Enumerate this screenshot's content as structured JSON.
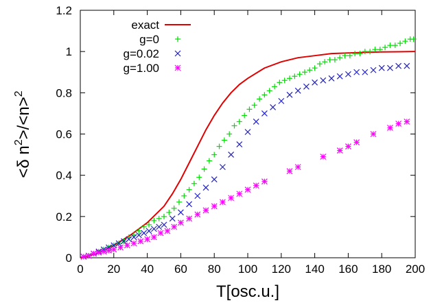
{
  "chart_data": {
    "type": "line",
    "xlabel": "T[osc.u.]",
    "ylabel_parts": [
      "<δ n",
      "2",
      ">/<n>",
      "2"
    ],
    "xlim": [
      0,
      200
    ],
    "ylim": [
      0,
      1.2
    ],
    "x_ticks": [
      0,
      20,
      40,
      60,
      80,
      100,
      120,
      140,
      160,
      180,
      200
    ],
    "y_ticks": [
      0,
      0.2,
      0.4,
      0.6,
      0.8,
      1,
      1.2
    ],
    "x_tick_labels": [
      "0",
      "20",
      "40",
      "60",
      "80",
      "100",
      "120",
      "140",
      "160",
      "180",
      "200"
    ],
    "y_tick_labels": [
      "0",
      "0.2",
      "0.4",
      "0.6",
      "0.8",
      "1",
      "1.2"
    ],
    "grid": false,
    "legend_position": "top-left",
    "series": [
      {
        "name": "exact",
        "style": "line",
        "color": "#e00000",
        "x": [
          0,
          10,
          20,
          30,
          40,
          50,
          55,
          60,
          65,
          70,
          75,
          80,
          85,
          90,
          95,
          100,
          110,
          120,
          130,
          140,
          150,
          160,
          170,
          180,
          190,
          200
        ],
        "y": [
          0,
          0.02,
          0.06,
          0.11,
          0.17,
          0.25,
          0.31,
          0.38,
          0.46,
          0.54,
          0.62,
          0.69,
          0.75,
          0.8,
          0.84,
          0.87,
          0.92,
          0.95,
          0.97,
          0.98,
          0.99,
          0.993,
          0.996,
          0.998,
          0.999,
          1.0
        ]
      },
      {
        "name": "g=0",
        "style": "plus",
        "color": "#00dd00",
        "x": [
          2,
          5,
          8,
          11,
          14,
          17,
          20,
          23,
          26,
          29,
          32,
          35,
          38,
          41,
          44,
          47,
          50,
          53,
          56,
          59,
          62,
          65,
          68,
          71,
          74,
          77,
          80,
          83,
          86,
          89,
          92,
          95,
          98,
          101,
          104,
          107,
          110,
          113,
          116,
          119,
          122,
          125,
          128,
          131,
          134,
          137,
          140,
          143,
          146,
          149,
          152,
          155,
          158,
          161,
          164,
          167,
          170,
          173,
          176,
          179,
          182,
          185,
          188,
          191,
          194,
          197,
          199
        ],
        "y": [
          0.005,
          0.01,
          0.02,
          0.03,
          0.04,
          0.05,
          0.06,
          0.07,
          0.08,
          0.1,
          0.11,
          0.13,
          0.15,
          0.16,
          0.18,
          0.19,
          0.2,
          0.22,
          0.24,
          0.27,
          0.3,
          0.33,
          0.36,
          0.39,
          0.43,
          0.47,
          0.5,
          0.54,
          0.57,
          0.6,
          0.64,
          0.66,
          0.69,
          0.72,
          0.74,
          0.77,
          0.79,
          0.81,
          0.83,
          0.85,
          0.86,
          0.87,
          0.88,
          0.89,
          0.9,
          0.91,
          0.92,
          0.94,
          0.95,
          0.96,
          0.96,
          0.97,
          0.98,
          0.98,
          0.99,
          0.99,
          1.0,
          1.0,
          1.01,
          1.01,
          1.02,
          1.03,
          1.03,
          1.04,
          1.05,
          1.06,
          1.06
        ]
      },
      {
        "name": "g=0.02",
        "style": "x",
        "color": "#2020c0",
        "x": [
          2,
          5,
          8,
          11,
          14,
          17,
          20,
          23,
          26,
          29,
          32,
          35,
          38,
          41,
          44,
          47,
          50,
          55,
          60,
          65,
          70,
          75,
          80,
          85,
          90,
          95,
          100,
          105,
          110,
          115,
          120,
          125,
          130,
          135,
          140,
          145,
          150,
          155,
          160,
          165,
          170,
          175,
          180,
          185,
          190,
          195
        ],
        "y": [
          0.005,
          0.01,
          0.02,
          0.03,
          0.04,
          0.05,
          0.06,
          0.07,
          0.08,
          0.09,
          0.1,
          0.11,
          0.12,
          0.13,
          0.14,
          0.15,
          0.16,
          0.19,
          0.22,
          0.26,
          0.3,
          0.34,
          0.38,
          0.44,
          0.5,
          0.55,
          0.61,
          0.66,
          0.7,
          0.73,
          0.76,
          0.79,
          0.81,
          0.83,
          0.85,
          0.86,
          0.87,
          0.88,
          0.89,
          0.9,
          0.9,
          0.91,
          0.92,
          0.92,
          0.93,
          0.93
        ]
      },
      {
        "name": "g=1.00",
        "style": "star",
        "color": "#ff00ff",
        "x": [
          2,
          5,
          8,
          11,
          14,
          17,
          20,
          24,
          28,
          32,
          36,
          40,
          44,
          48,
          52,
          56,
          60,
          65,
          70,
          75,
          80,
          85,
          90,
          95,
          100,
          105,
          110,
          125,
          130,
          145,
          155,
          160,
          165,
          175,
          185,
          190,
          195
        ],
        "y": [
          0.005,
          0.01,
          0.02,
          0.025,
          0.03,
          0.035,
          0.04,
          0.05,
          0.06,
          0.07,
          0.08,
          0.09,
          0.1,
          0.12,
          0.13,
          0.15,
          0.17,
          0.19,
          0.21,
          0.23,
          0.25,
          0.27,
          0.29,
          0.31,
          0.33,
          0.35,
          0.37,
          0.42,
          0.44,
          0.49,
          0.52,
          0.54,
          0.56,
          0.6,
          0.63,
          0.65,
          0.66
        ]
      }
    ]
  }
}
